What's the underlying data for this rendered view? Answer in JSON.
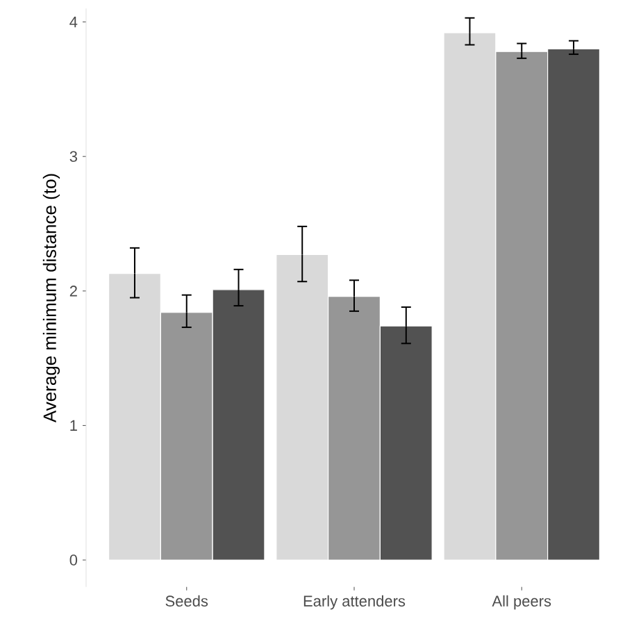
{
  "chart_data": {
    "type": "bar",
    "ylabel": "Average minimum distance (to)",
    "categories": [
      "Seeds",
      "Early attenders",
      "All peers"
    ],
    "series": [
      {
        "color": "#d9d9d9",
        "values": [
          2.13,
          2.27,
          3.92
        ],
        "errors": [
          [
            1.95,
            2.32
          ],
          [
            2.07,
            2.48
          ],
          [
            3.83,
            4.03
          ]
        ]
      },
      {
        "color": "#969696",
        "values": [
          1.84,
          1.96,
          3.78
        ],
        "errors": [
          [
            1.73,
            1.97
          ],
          [
            1.85,
            2.08
          ],
          [
            3.73,
            3.84
          ]
        ]
      },
      {
        "color": "#525252",
        "values": [
          2.01,
          1.74,
          3.8
        ],
        "errors": [
          [
            1.89,
            2.16
          ],
          [
            1.61,
            1.88
          ],
          [
            3.76,
            3.86
          ]
        ]
      }
    ],
    "ylim": [
      -0.2,
      4.1
    ],
    "yticks": [
      0,
      1,
      2,
      3,
      4
    ],
    "grid": false
  }
}
